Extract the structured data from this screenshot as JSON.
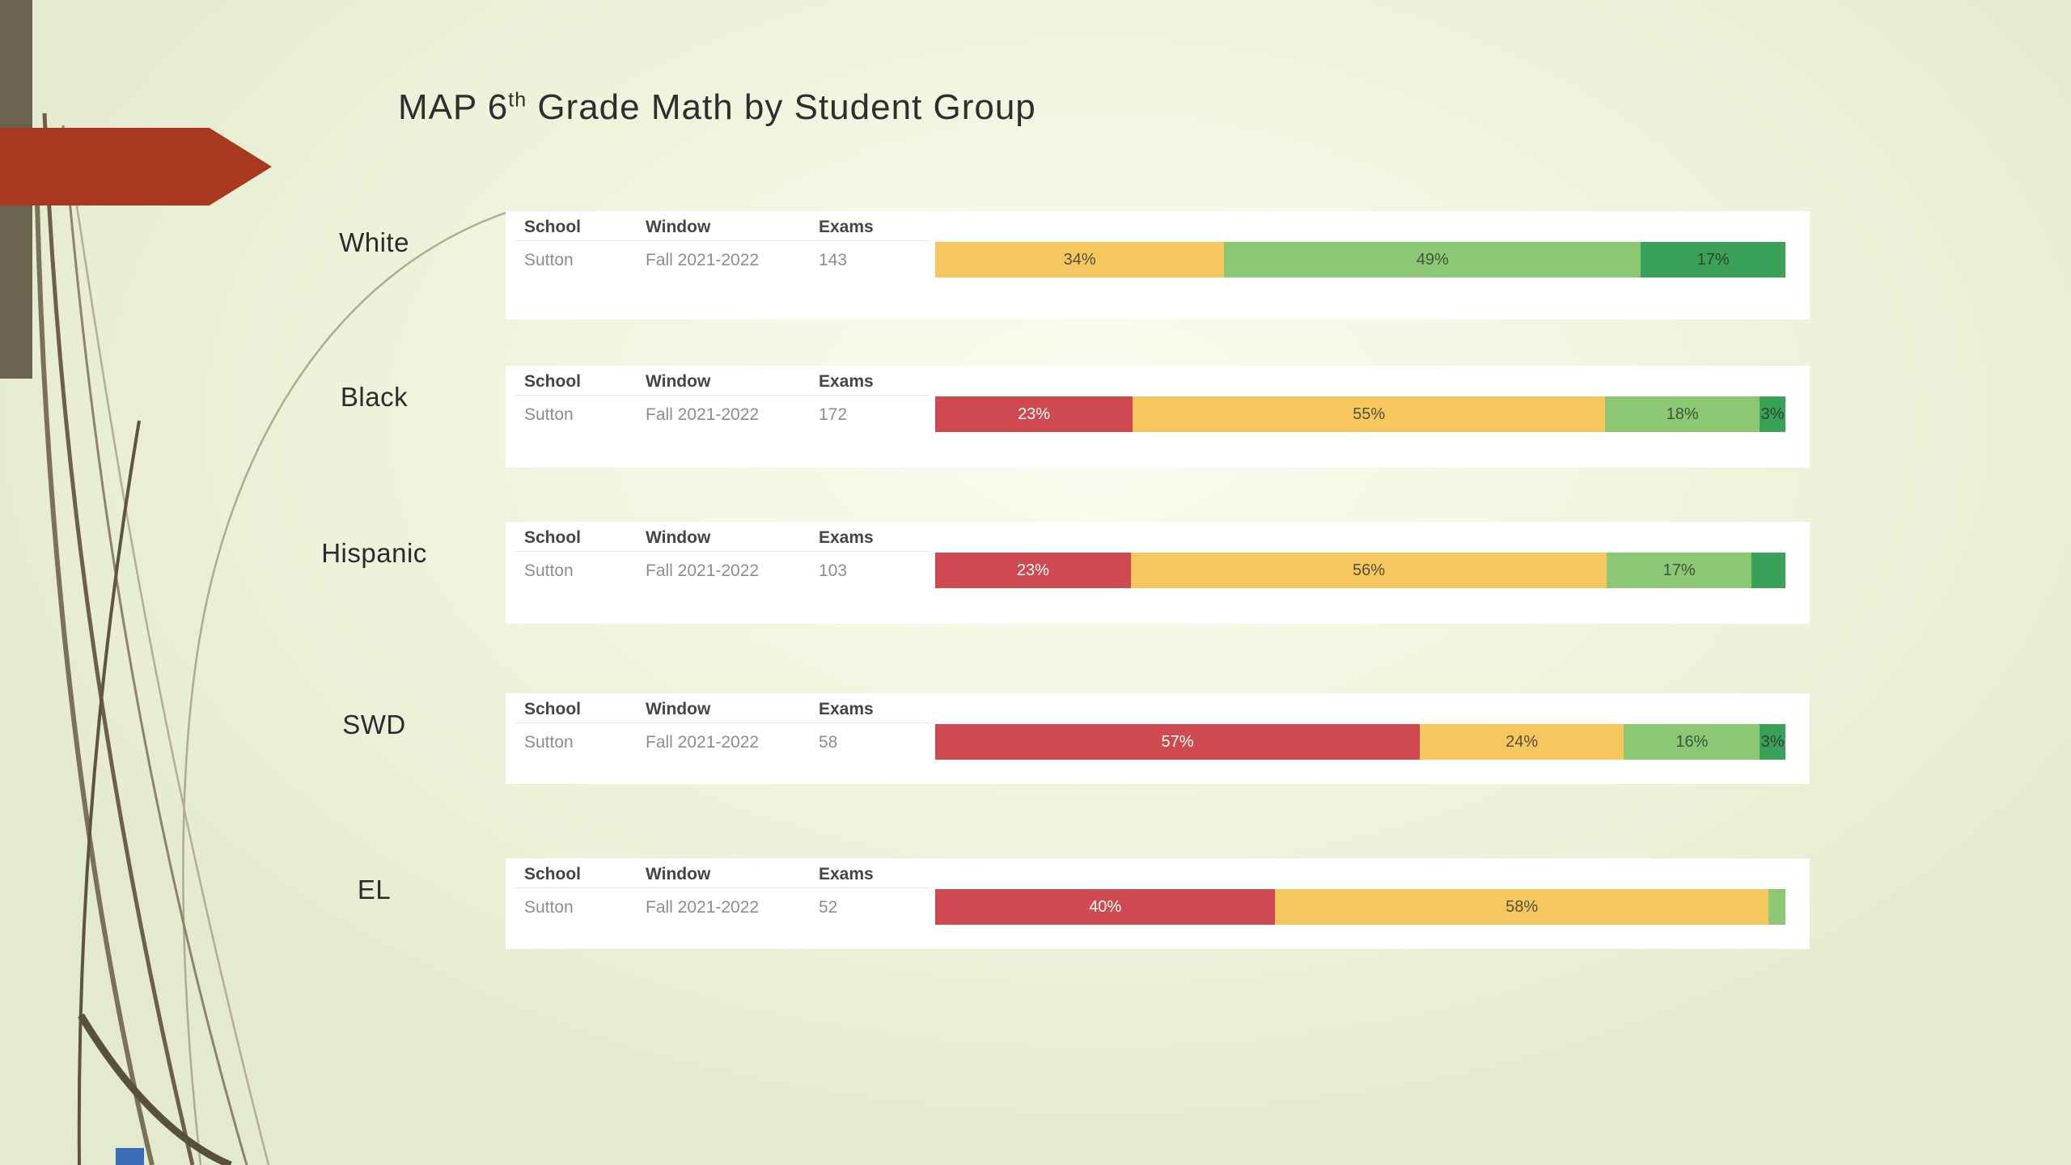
{
  "slide": {
    "title_prefix": "MAP 6",
    "title_superscript": "th",
    "title_suffix": " Grade Math by Student Group"
  },
  "table_headers": {
    "school": "School",
    "window": "Window",
    "exams": "Exams"
  },
  "groups": [
    {
      "label": "White",
      "school": "Sutton",
      "window": "Fall 2021-2022",
      "exams": "143",
      "segments": [
        {
          "color": "yellow",
          "value": 34,
          "label": "34%"
        },
        {
          "color": "light_green",
          "value": 49,
          "label": "49%"
        },
        {
          "color": "dark_green",
          "value": 17,
          "label": "17%"
        }
      ]
    },
    {
      "label": "Black",
      "school": "Sutton",
      "window": "Fall 2021-2022",
      "exams": "172",
      "segments": [
        {
          "color": "red",
          "value": 23,
          "label": "23%"
        },
        {
          "color": "yellow",
          "value": 55,
          "label": "55%"
        },
        {
          "color": "light_green",
          "value": 18,
          "label": "18%"
        },
        {
          "color": "dark_green",
          "value": 3,
          "label": "3%"
        }
      ]
    },
    {
      "label": "Hispanic",
      "school": "Sutton",
      "window": "Fall 2021-2022",
      "exams": "103",
      "segments": [
        {
          "color": "red",
          "value": 23,
          "label": "23%"
        },
        {
          "color": "yellow",
          "value": 56,
          "label": "56%"
        },
        {
          "color": "light_green",
          "value": 17,
          "label": "17%"
        },
        {
          "color": "dark_green",
          "value": 4,
          "label": ""
        }
      ]
    },
    {
      "label": "SWD",
      "school": "Sutton",
      "window": "Fall 2021-2022",
      "exams": "58",
      "segments": [
        {
          "color": "red",
          "value": 57,
          "label": "57%"
        },
        {
          "color": "yellow",
          "value": 24,
          "label": "24%"
        },
        {
          "color": "light_green",
          "value": 16,
          "label": "16%"
        },
        {
          "color": "dark_green",
          "value": 3,
          "label": "3%"
        }
      ]
    },
    {
      "label": "EL",
      "school": "Sutton",
      "window": "Fall 2021-2022",
      "exams": "52",
      "segments": [
        {
          "color": "red",
          "value": 40,
          "label": "40%"
        },
        {
          "color": "yellow",
          "value": 58,
          "label": "58%"
        },
        {
          "color": "light_green",
          "value": 2,
          "label": ""
        }
      ]
    }
  ],
  "colors": {
    "red": "#cf4a50",
    "yellow": "#f5c75e",
    "light_green": "#8cc873",
    "dark_green": "#3aa158",
    "accent_arrow": "#a9391e",
    "stripe": "#6a6350",
    "blue_mark": "#3a6db8"
  },
  "chart_data": {
    "type": "bar",
    "variant": "horizontal-stacked-percent",
    "title": "MAP 6th Grade Math by Student Group",
    "categories": [
      "White",
      "Black",
      "Hispanic",
      "SWD",
      "EL"
    ],
    "series": [
      {
        "name": "red-segment",
        "color": "#cf4a50",
        "values": [
          0,
          23,
          23,
          57,
          40
        ]
      },
      {
        "name": "yellow-segment",
        "color": "#f5c75e",
        "values": [
          34,
          55,
          56,
          24,
          58
        ]
      },
      {
        "name": "light-green-segment",
        "color": "#8cc873",
        "values": [
          49,
          18,
          17,
          16,
          2
        ]
      },
      {
        "name": "dark-green-segment",
        "color": "#3aa158",
        "values": [
          17,
          3,
          4,
          3,
          0
        ]
      }
    ],
    "exam_counts": [
      143,
      172,
      103,
      58,
      52
    ],
    "school": "Sutton",
    "window": "Fall 2021-2022",
    "unit": "percent",
    "xlim": [
      0,
      100
    ],
    "grid": false,
    "legend": false
  }
}
